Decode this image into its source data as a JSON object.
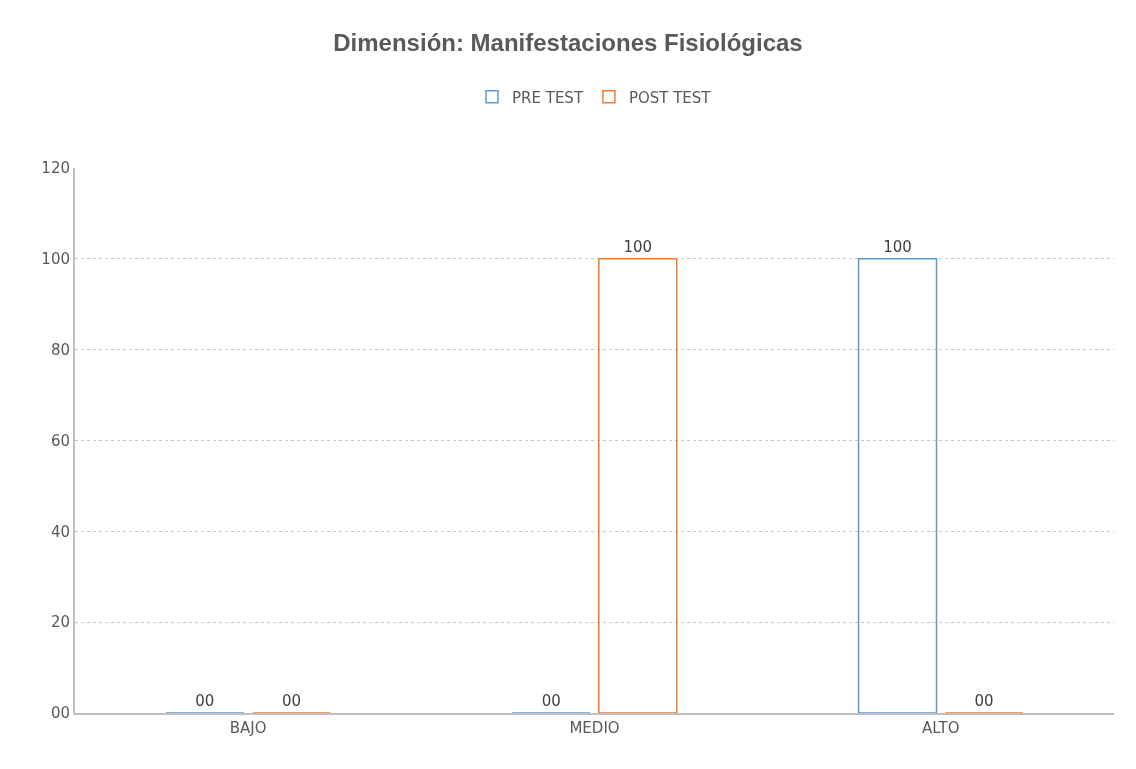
{
  "chart_data": {
    "type": "bar",
    "title": "Dimensión: Manifestaciones Fisiológicas",
    "categories": [
      "BAJO",
      "MEDIO",
      "ALTO"
    ],
    "series": [
      {
        "name": "PRE TEST",
        "color": "#5b9bd5",
        "values": [
          0,
          0,
          100
        ],
        "value_labels": [
          "00",
          "00",
          "100"
        ]
      },
      {
        "name": "POST TEST",
        "color": "#ed7d31",
        "values": [
          0,
          100,
          0
        ],
        "value_labels": [
          "00",
          "100",
          "00"
        ]
      }
    ],
    "ylim": [
      0,
      120
    ],
    "yticks": [
      {
        "value": 0,
        "label": "00"
      },
      20,
      40,
      60,
      80,
      100,
      120
    ],
    "grid": "y",
    "legend": "top"
  }
}
